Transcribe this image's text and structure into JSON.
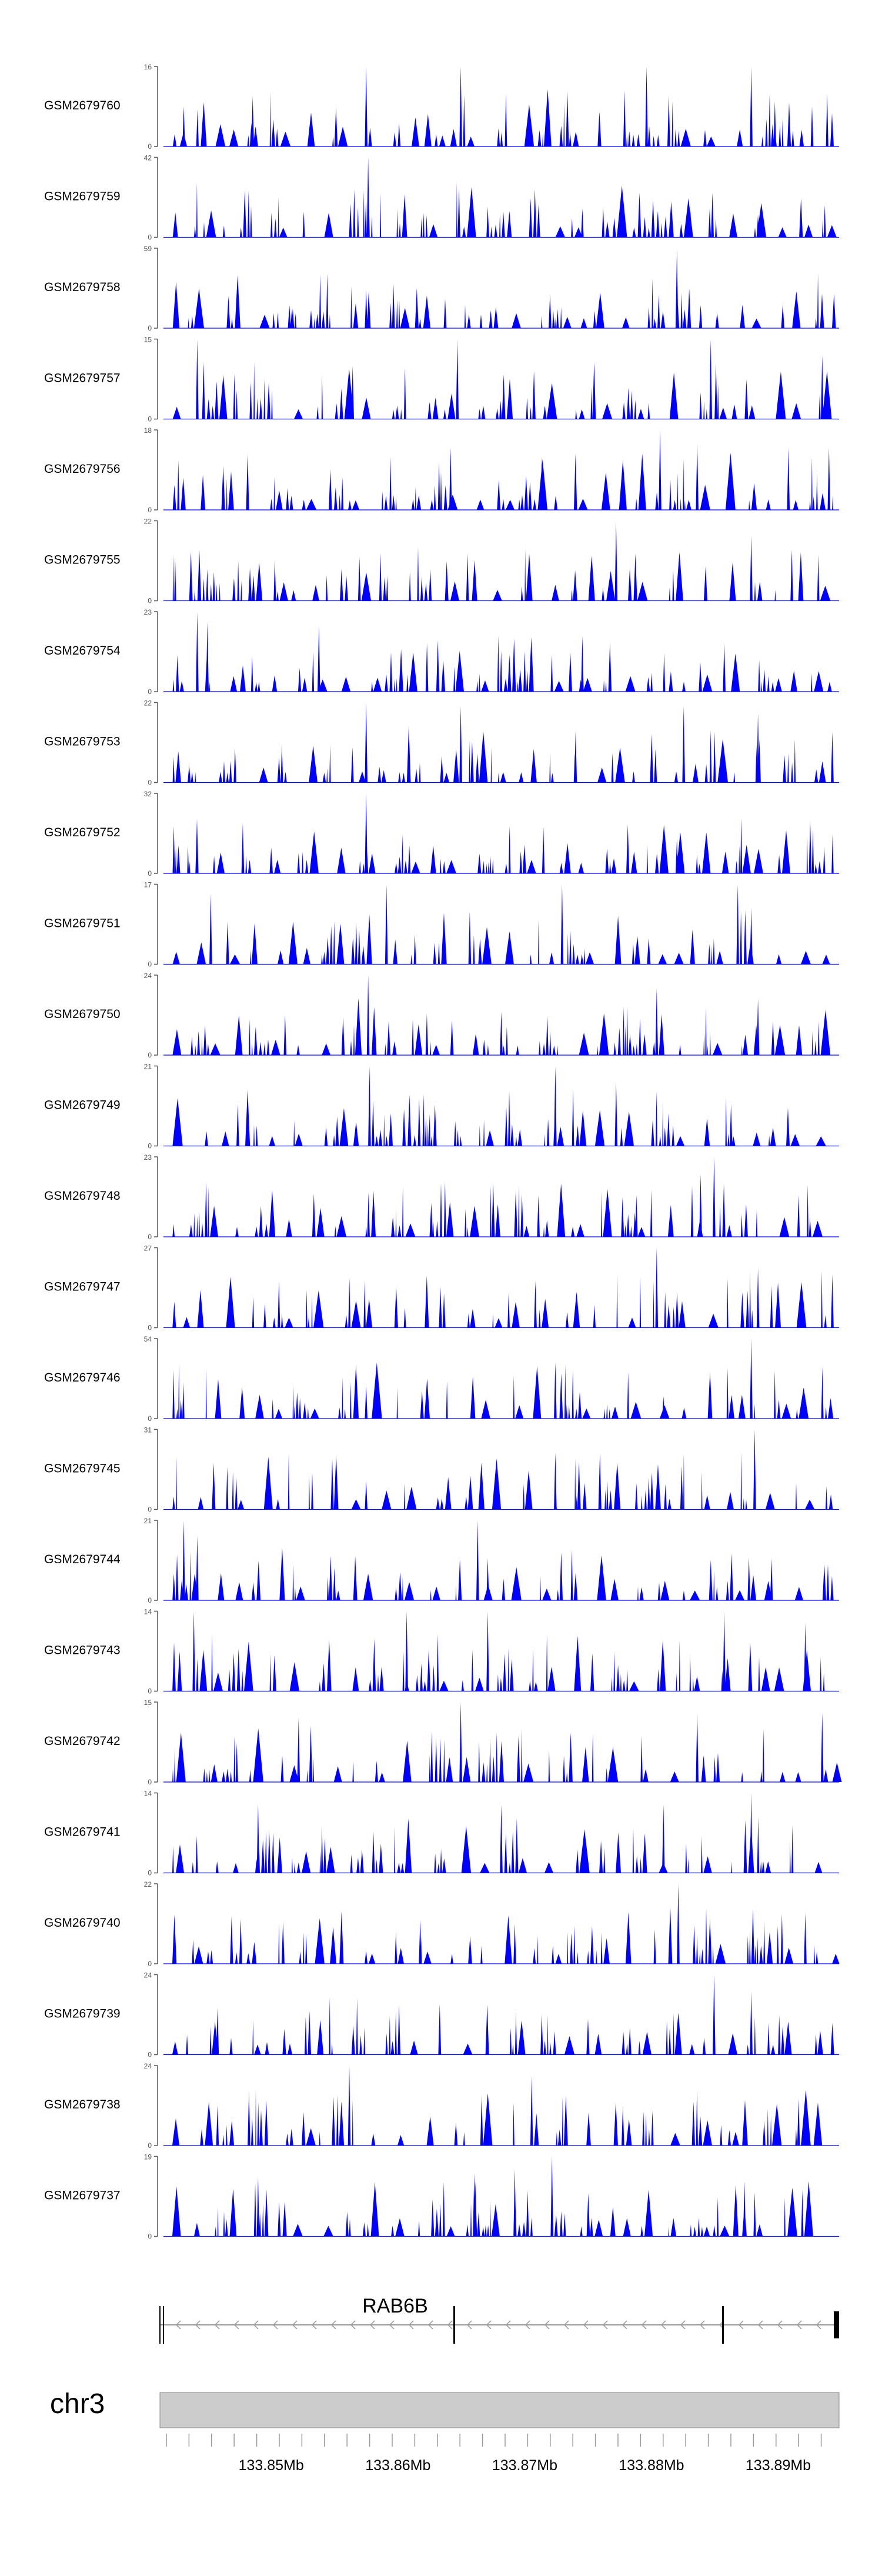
{
  "chart_data": {
    "type": "area",
    "description_labels": {
      "chromosome": "chr3",
      "gene": "RAB6B"
    },
    "x_range_mb": [
      133.8415,
      133.8948
    ],
    "x_ticks": [
      "133.85Mb",
      "133.86Mb",
      "133.87Mb",
      "133.88Mb",
      "133.89Mb"
    ],
    "x_tick_values": [
      133.85,
      133.86,
      133.87,
      133.88,
      133.89
    ],
    "tracks": [
      {
        "name": "GSM2679760",
        "ymax": 16,
        "ymin": 0,
        "seed": 7601,
        "peaks": [
          [
            0.03,
            8
          ],
          [
            0.132,
            10
          ],
          [
            0.3,
            16
          ],
          [
            0.44,
            16
          ],
          [
            0.715,
            16
          ],
          [
            0.87,
            16
          ],
          [
            0.905,
            9
          ],
          [
            0.96,
            8
          ]
        ]
      },
      {
        "name": "GSM2679759",
        "ymax": 42,
        "ymin": 0,
        "seed": 7591,
        "peaks": [
          [
            0.303,
            42
          ],
          [
            0.48,
            16
          ],
          [
            0.62,
            15
          ],
          [
            0.78,
            14
          ],
          [
            0.88,
            12
          ]
        ]
      },
      {
        "name": "GSM2679758",
        "ymax": 59,
        "ymin": 0,
        "seed": 7581,
        "peaks": [
          [
            0.3,
            28
          ],
          [
            0.34,
            18
          ],
          [
            0.19,
            14
          ],
          [
            0.76,
            59
          ],
          [
            0.47,
            10
          ]
        ]
      },
      {
        "name": "GSM2679757",
        "ymax": 15,
        "ymin": 0,
        "seed": 7571,
        "peaks": [
          [
            0.05,
            15
          ],
          [
            0.435,
            15
          ],
          [
            0.81,
            15
          ],
          [
            0.975,
            12
          ],
          [
            0.28,
            10
          ]
        ]
      },
      {
        "name": "GSM2679756",
        "ymax": 18,
        "ymin": 0,
        "seed": 7561,
        "peaks": [
          [
            0.425,
            14
          ],
          [
            0.56,
            12
          ],
          [
            0.735,
            18
          ],
          [
            0.79,
            15
          ],
          [
            0.925,
            14
          ],
          [
            0.985,
            14
          ]
        ]
      },
      {
        "name": "GSM2679755",
        "ymax": 22,
        "ymin": 0,
        "seed": 7551,
        "peaks": [
          [
            0.67,
            22
          ],
          [
            0.87,
            18
          ],
          [
            0.29,
            12
          ],
          [
            0.45,
            13
          ],
          [
            0.93,
            14
          ]
        ]
      },
      {
        "name": "GSM2679754",
        "ymax": 23,
        "ymin": 0,
        "seed": 7541,
        "peaks": [
          [
            0.05,
            23
          ],
          [
            0.065,
            20
          ],
          [
            0.23,
            19
          ],
          [
            0.39,
            14
          ],
          [
            0.62,
            16
          ],
          [
            0.83,
            14
          ]
        ]
      },
      {
        "name": "GSM2679753",
        "ymax": 22,
        "ymin": 0,
        "seed": 7531,
        "peaks": [
          [
            0.3,
            22
          ],
          [
            0.44,
            21
          ],
          [
            0.77,
            21
          ],
          [
            0.88,
            19
          ],
          [
            0.61,
            14
          ],
          [
            0.99,
            14
          ]
        ]
      },
      {
        "name": "GSM2679752",
        "ymax": 32,
        "ymin": 0,
        "seed": 7521,
        "peaks": [
          [
            0.3,
            32
          ],
          [
            0.76,
            14
          ],
          [
            0.74,
            12
          ],
          [
            0.2,
            8
          ]
        ]
      },
      {
        "name": "GSM2679751",
        "ymax": 17,
        "ymin": 0,
        "seed": 7511,
        "peaks": [
          [
            0.33,
            17
          ],
          [
            0.59,
            17
          ],
          [
            0.85,
            17
          ],
          [
            0.87,
            12
          ],
          [
            0.07,
            15
          ]
        ]
      },
      {
        "name": "GSM2679750",
        "ymax": 24,
        "ymin": 0,
        "seed": 7501,
        "peaks": [
          [
            0.303,
            24
          ],
          [
            0.73,
            20
          ],
          [
            0.88,
            17
          ],
          [
            0.18,
            12
          ],
          [
            0.5,
            13
          ]
        ]
      },
      {
        "name": "GSM2679749",
        "ymax": 21,
        "ymin": 0,
        "seed": 7491,
        "peaks": [
          [
            0.305,
            21
          ],
          [
            0.58,
            21
          ],
          [
            0.67,
            17
          ],
          [
            0.11,
            11
          ],
          [
            0.84,
            11
          ]
        ]
      },
      {
        "name": "GSM2679748",
        "ymax": 23,
        "ymin": 0,
        "seed": 7481,
        "peaks": [
          [
            0.815,
            23
          ],
          [
            0.795,
            18
          ],
          [
            0.94,
            12
          ],
          [
            0.555,
            12
          ],
          [
            0.7,
            12
          ]
        ]
      },
      {
        "name": "GSM2679747",
        "ymax": 27,
        "ymin": 0,
        "seed": 7471,
        "peaks": [
          [
            0.73,
            27
          ],
          [
            0.88,
            20
          ],
          [
            0.99,
            18
          ],
          [
            0.9,
            14
          ],
          [
            0.15,
            8
          ]
        ]
      },
      {
        "name": "GSM2679746",
        "ymax": 54,
        "ymin": 0,
        "seed": 7461,
        "peaks": [
          [
            0.58,
            38
          ],
          [
            0.87,
            54
          ],
          [
            0.3,
            22
          ],
          [
            0.74,
            15
          ]
        ]
      },
      {
        "name": "GSM2679745",
        "ymax": 31,
        "ymin": 0,
        "seed": 7451,
        "peaks": [
          [
            0.875,
            31
          ],
          [
            0.58,
            22
          ],
          [
            0.3,
            11
          ],
          [
            0.7,
            10
          ]
        ]
      },
      {
        "name": "GSM2679744",
        "ymax": 21,
        "ymin": 0,
        "seed": 7441,
        "peaks": [
          [
            0.03,
            21
          ],
          [
            0.05,
            17
          ],
          [
            0.465,
            21
          ],
          [
            0.48,
            11
          ],
          [
            0.9,
            11
          ]
        ]
      },
      {
        "name": "GSM2679743",
        "ymax": 14,
        "ymin": 0,
        "seed": 7431,
        "peaks": [
          [
            0.045,
            14
          ],
          [
            0.36,
            14
          ],
          [
            0.48,
            14
          ],
          [
            0.83,
            14
          ],
          [
            0.95,
            12
          ]
        ]
      },
      {
        "name": "GSM2679742",
        "ymax": 15,
        "ymin": 0,
        "seed": 7421,
        "peaks": [
          [
            0.44,
            15
          ],
          [
            0.79,
            13
          ],
          [
            0.975,
            13
          ],
          [
            0.2,
            12
          ]
        ]
      },
      {
        "name": "GSM2679741",
        "ymax": 14,
        "ymin": 0,
        "seed": 7411,
        "peaks": [
          [
            0.87,
            14
          ],
          [
            0.5,
            12
          ],
          [
            0.14,
            12
          ],
          [
            0.74,
            12
          ]
        ]
      },
      {
        "name": "GSM2679740",
        "ymax": 22,
        "ymin": 0,
        "seed": 7401,
        "peaks": [
          [
            0.762,
            22
          ],
          [
            0.95,
            14
          ],
          [
            0.38,
            12
          ],
          [
            0.52,
            11
          ]
        ]
      },
      {
        "name": "GSM2679739",
        "ymax": 24,
        "ymin": 0,
        "seed": 7391,
        "peaks": [
          [
            0.815,
            24
          ],
          [
            0.87,
            19
          ],
          [
            0.56,
            12
          ],
          [
            0.08,
            14
          ]
        ]
      },
      {
        "name": "GSM2679738",
        "ymax": 24,
        "ymin": 0,
        "seed": 7381,
        "peaks": [
          [
            0.275,
            24
          ],
          [
            0.545,
            21
          ],
          [
            0.94,
            14
          ],
          [
            0.08,
            12
          ],
          [
            0.68,
            12
          ]
        ]
      },
      {
        "name": "GSM2679737",
        "ymax": 19,
        "ymin": 0,
        "seed": 7371,
        "peaks": [
          [
            0.575,
            19
          ],
          [
            0.46,
            15
          ],
          [
            0.52,
            16
          ],
          [
            0.14,
            14
          ],
          [
            0.86,
            13
          ]
        ]
      }
    ]
  },
  "colors": {
    "signal": "#0000ff",
    "axis": "#555555",
    "text": "#000000",
    "ideogram": "#cccccc"
  }
}
